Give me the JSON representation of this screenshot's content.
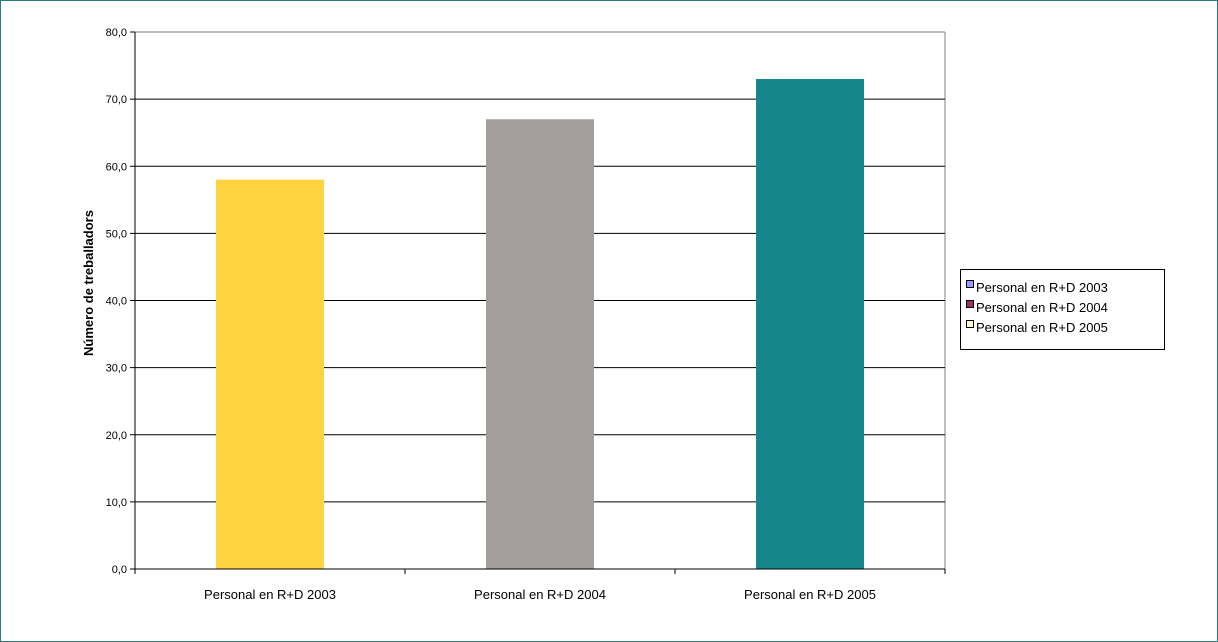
{
  "chart_data": {
    "type": "bar",
    "categories": [
      "Personal en R+D 2003",
      "Personal en R+D 2004",
      "Personal en R+D 2005"
    ],
    "values": [
      58.0,
      67.0,
      73.0
    ],
    "bar_colors": [
      "#ffd23f",
      "#a39e9c",
      "#15878a"
    ],
    "title": "",
    "xlabel": "",
    "ylabel": "Número de treballadors",
    "ylim": [
      0,
      80
    ],
    "yticks": [
      0,
      10,
      20,
      30,
      40,
      50,
      60,
      70,
      80
    ],
    "ytick_labels": [
      "0,0",
      "10,0",
      "20,0",
      "30,0",
      "40,0",
      "50,0",
      "60,0",
      "70,0",
      "80,0"
    ],
    "grid": true,
    "legend_position": "right",
    "legend": [
      {
        "label": "Personal en R+D 2003",
        "color": "#9999ff"
      },
      {
        "label": "Personal en R+D 2004",
        "color": "#993366"
      },
      {
        "label": "Personal en R+D 2005",
        "color": "#ffffcc"
      }
    ]
  }
}
